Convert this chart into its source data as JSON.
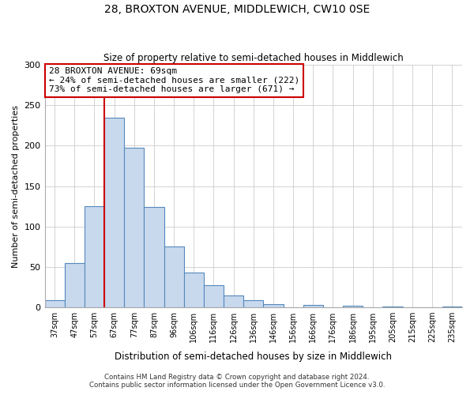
{
  "title": "28, BROXTON AVENUE, MIDDLEWICH, CW10 0SE",
  "subtitle": "Size of property relative to semi-detached houses in Middlewich",
  "xlabel": "Distribution of semi-detached houses by size in Middlewich",
  "ylabel": "Number of semi-detached properties",
  "footer_line1": "Contains HM Land Registry data © Crown copyright and database right 2024.",
  "footer_line2": "Contains public sector information licensed under the Open Government Licence v3.0.",
  "bin_labels": [
    "37sqm",
    "47sqm",
    "57sqm",
    "67sqm",
    "77sqm",
    "87sqm",
    "96sqm",
    "106sqm",
    "116sqm",
    "126sqm",
    "136sqm",
    "146sqm",
    "156sqm",
    "166sqm",
    "176sqm",
    "186sqm",
    "195sqm",
    "205sqm",
    "215sqm",
    "225sqm",
    "235sqm"
  ],
  "bin_values": [
    9,
    55,
    125,
    235,
    197,
    124,
    75,
    43,
    27,
    15,
    9,
    4,
    0,
    3,
    0,
    2,
    0,
    1,
    0,
    0,
    1
  ],
  "bar_color": "#c8d9ee",
  "bar_edge_color": "#5588bb",
  "marker_bin_index": 3,
  "marker_line_color": "#cc0000",
  "annotation_title": "28 BROXTON AVENUE: 69sqm",
  "annotation_line1": "← 24% of semi-detached houses are smaller (222)",
  "annotation_line2": "73% of semi-detached houses are larger (671) →",
  "annotation_box_color": "#cc0000",
  "ylim": [
    0,
    300
  ],
  "yticks": [
    0,
    50,
    100,
    150,
    200,
    250,
    300
  ]
}
